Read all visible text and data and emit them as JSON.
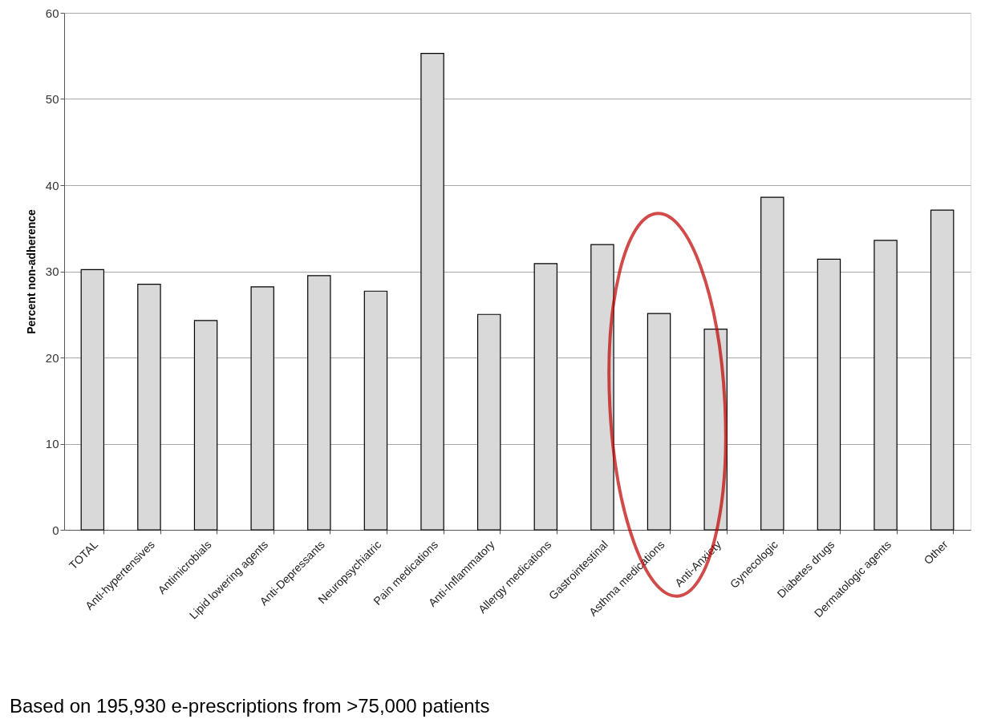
{
  "chart_data": {
    "type": "bar",
    "ylabel": "Percent non-adherence",
    "categories": [
      "TOTAL",
      "Anti-hypertensives",
      "Antimicrobials",
      "Lipid lowering agents",
      "Anti-Depressants",
      "Neuropsychiatric",
      "Pain medications",
      "Anti-Inflammatory",
      "Allergy medications",
      "Gastrointestinal",
      "Asthma medications",
      "Anti-Anxiety",
      "Gynecologic",
      "Diabetes drugs",
      "Dermatologic agents",
      "Other"
    ],
    "values": [
      30.2,
      28.5,
      24.3,
      28.2,
      29.5,
      27.7,
      55.3,
      25.0,
      30.9,
      33.1,
      25.1,
      23.3,
      38.6,
      31.4,
      33.6,
      37.1
    ],
    "color": "#d9d9d9",
    "ylim": [
      0,
      60
    ],
    "yticks": [
      0,
      10,
      20,
      30,
      40,
      50,
      60
    ],
    "grid": "y",
    "annotations": [
      "Based on 195,930 e-prescriptions from >75,000 patients"
    ]
  }
}
